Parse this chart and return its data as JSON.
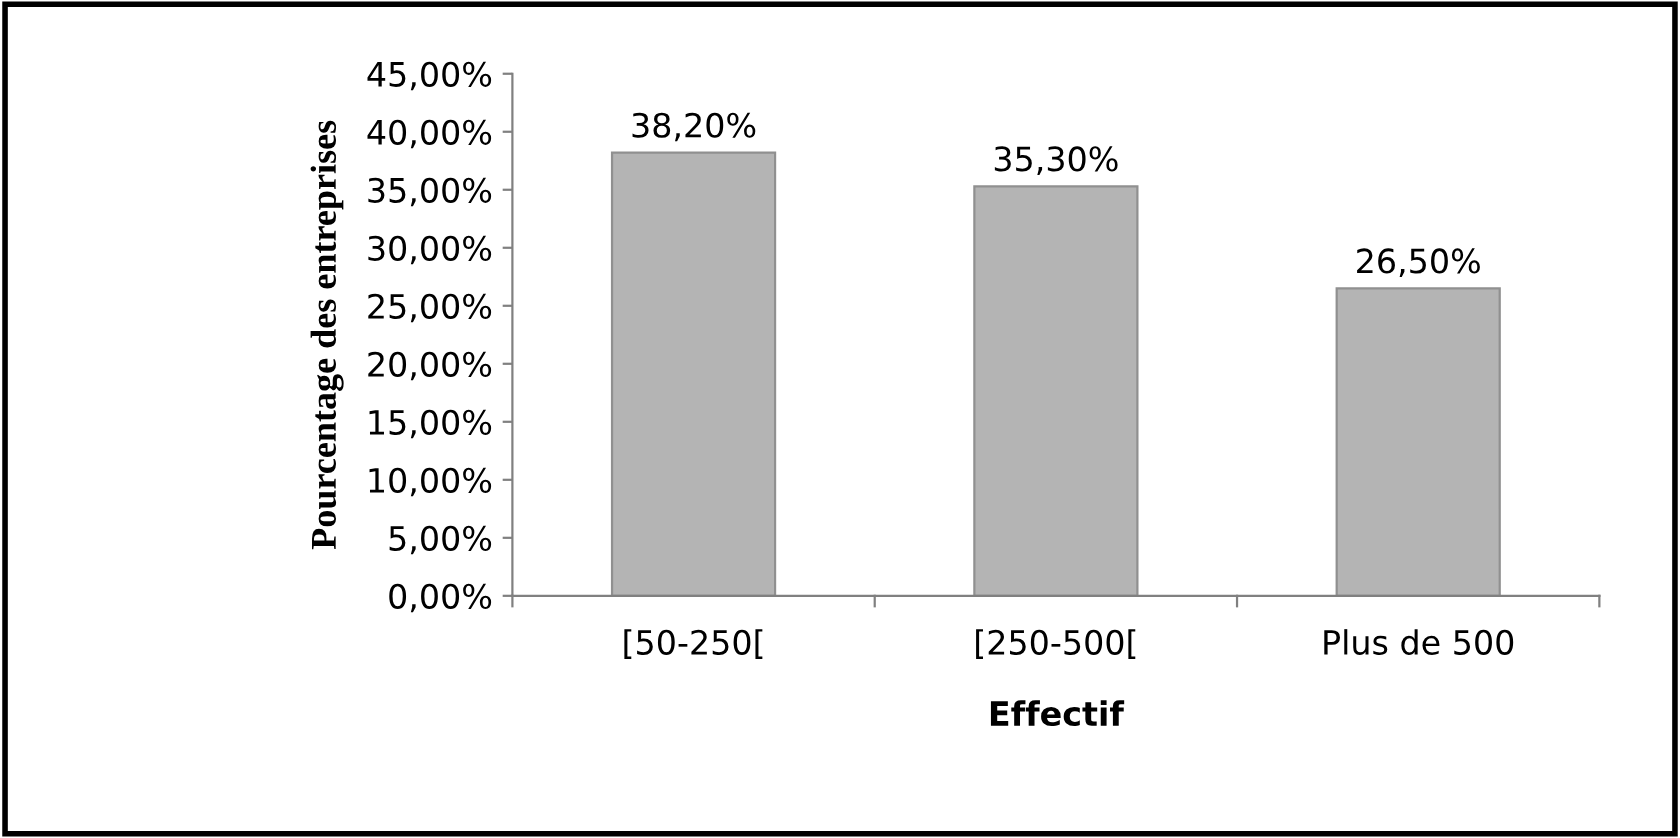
{
  "chart_data": {
    "type": "bar",
    "xlabel": "Effectif",
    "ylabel": "Pourcentage des entreprises",
    "categories": [
      "[50-250[",
      "[250-500[",
      "Plus de 500"
    ],
    "values": [
      38.2,
      35.3,
      26.5
    ],
    "color": "#b4b4b4",
    "value_labels": [
      "38,20%",
      "35,30%",
      "26,50%"
    ],
    "ylim": [
      0,
      45
    ],
    "yticks": [
      {
        "value": 0,
        "label": "0,00%"
      },
      {
        "value": 5,
        "label": "5,00%"
      },
      {
        "value": 10,
        "label": "10,00%"
      },
      {
        "value": 15,
        "label": "15,00%"
      },
      {
        "value": 20,
        "label": "20,00%"
      },
      {
        "value": 25,
        "label": "25,00%"
      },
      {
        "value": 30,
        "label": "30,00%"
      },
      {
        "value": 35,
        "label": "35,00%"
      },
      {
        "value": 40,
        "label": "40,00%"
      },
      {
        "value": 45,
        "label": "45,00%"
      }
    ],
    "grid": false,
    "legend": false
  }
}
